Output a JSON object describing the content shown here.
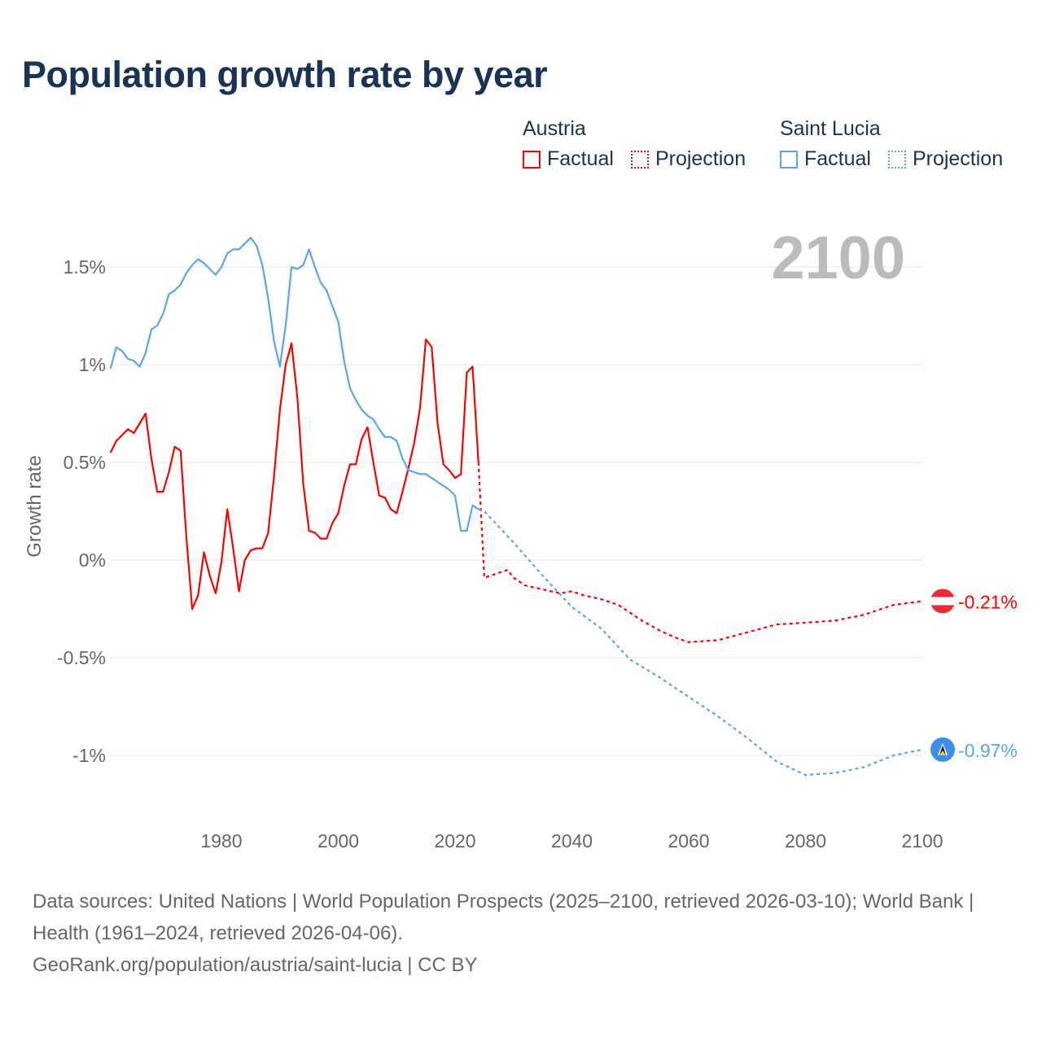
{
  "title": "Population growth rate by year",
  "legend": {
    "groups": [
      {
        "name": "Austria",
        "color": "#ff0000",
        "factual": "Factual",
        "projection": "Projection"
      },
      {
        "name": "Saint Lucia",
        "color": "#5aa5f0",
        "factual": "Factual",
        "projection": "Projection"
      }
    ]
  },
  "year_label": "2100",
  "source": {
    "line1": "Data sources: United Nations | World Population Prospects (2025–2100, retrieved 2026-03-10); World Bank | Health (1961–2024, retrieved 2026-04-06).",
    "line2": "GeoRank.org/population/austria/saint-lucia | CC BY"
  },
  "chart_data": {
    "type": "line",
    "title": "Population growth rate by year",
    "xlabel": "",
    "ylabel": "Growth rate",
    "xlim": [
      1961,
      2100
    ],
    "ylim": [
      -1.2,
      1.8
    ],
    "x_ticks": [
      1980,
      2000,
      2020,
      2040,
      2060,
      2080,
      2100
    ],
    "x_tick_labels": [
      "1980",
      "2000",
      "2020",
      "2040",
      "2060",
      "2080",
      "2100"
    ],
    "y_ticks": [
      1.5,
      1,
      0.5,
      0,
      -0.5,
      -1
    ],
    "y_tick_labels": [
      "1.5%",
      "1%",
      "0.5%",
      "0%",
      "-0.5%",
      "-1%"
    ],
    "grid": true,
    "legend_position": "top-right",
    "series": [
      {
        "name": "Austria",
        "kind": "Factual",
        "color": "#ff0000",
        "x": [
          1961,
          1962,
          1963,
          1964,
          1965,
          1966,
          1967,
          1968,
          1969,
          1970,
          1971,
          1972,
          1973,
          1974,
          1975,
          1976,
          1977,
          1978,
          1979,
          1980,
          1981,
          1982,
          1983,
          1984,
          1985,
          1986,
          1987,
          1988,
          1989,
          1990,
          1991,
          1992,
          1993,
          1994,
          1995,
          1996,
          1997,
          1998,
          1999,
          2000,
          2001,
          2002,
          2003,
          2004,
          2005,
          2006,
          2007,
          2008,
          2009,
          2010,
          2011,
          2012,
          2013,
          2014,
          2015,
          2016,
          2017,
          2018,
          2019,
          2020,
          2021,
          2022,
          2023,
          2024
        ],
        "values": [
          0.55,
          0.61,
          0.64,
          0.67,
          0.65,
          0.7,
          0.75,
          0.52,
          0.35,
          0.35,
          0.45,
          0.58,
          0.56,
          0.11,
          -0.25,
          -0.18,
          0.04,
          -0.08,
          -0.17,
          -0.01,
          0.26,
          0.06,
          -0.16,
          0.0,
          0.05,
          0.06,
          0.06,
          0.14,
          0.43,
          0.77,
          1.0,
          1.11,
          0.83,
          0.39,
          0.15,
          0.14,
          0.11,
          0.11,
          0.19,
          0.24,
          0.38,
          0.49,
          0.49,
          0.62,
          0.68,
          0.5,
          0.33,
          0.32,
          0.26,
          0.24,
          0.35,
          0.47,
          0.6,
          0.78,
          1.13,
          1.09,
          0.7,
          0.49,
          0.46,
          0.42,
          0.44,
          0.96,
          0.99,
          0.5
        ]
      },
      {
        "name": "Austria",
        "kind": "Projection",
        "color": "#ff0000",
        "x": [
          2024,
          2025,
          2027,
          2029,
          2030,
          2032,
          2035,
          2038,
          2040,
          2042,
          2045,
          2048,
          2050,
          2052,
          2055,
          2058,
          2060,
          2065,
          2070,
          2075,
          2080,
          2085,
          2090,
          2095,
          2100
        ],
        "values": [
          0.5,
          -0.09,
          -0.07,
          -0.05,
          -0.09,
          -0.13,
          -0.15,
          -0.17,
          -0.16,
          -0.18,
          -0.2,
          -0.23,
          -0.27,
          -0.31,
          -0.36,
          -0.4,
          -0.42,
          -0.41,
          -0.37,
          -0.33,
          -0.32,
          -0.31,
          -0.28,
          -0.23,
          -0.21
        ]
      },
      {
        "name": "Saint Lucia",
        "kind": "Factual",
        "color": "#5aa5f0",
        "x": [
          1961,
          1962,
          1963,
          1964,
          1965,
          1966,
          1967,
          1968,
          1969,
          1970,
          1971,
          1972,
          1973,
          1974,
          1975,
          1976,
          1977,
          1978,
          1979,
          1980,
          1981,
          1982,
          1983,
          1984,
          1985,
          1986,
          1987,
          1988,
          1989,
          1990,
          1991,
          1992,
          1993,
          1994,
          1995,
          1996,
          1997,
          1998,
          1999,
          2000,
          2001,
          2002,
          2003,
          2004,
          2005,
          2006,
          2007,
          2008,
          2009,
          2010,
          2011,
          2012,
          2013,
          2014,
          2015,
          2016,
          2017,
          2018,
          2019,
          2020,
          2021,
          2022,
          2023,
          2024
        ],
        "values": [
          0.98,
          1.09,
          1.07,
          1.03,
          1.02,
          0.99,
          1.06,
          1.18,
          1.2,
          1.26,
          1.36,
          1.38,
          1.41,
          1.47,
          1.51,
          1.54,
          1.52,
          1.49,
          1.46,
          1.5,
          1.57,
          1.59,
          1.59,
          1.62,
          1.65,
          1.61,
          1.51,
          1.34,
          1.12,
          0.99,
          1.2,
          1.5,
          1.49,
          1.51,
          1.59,
          1.5,
          1.42,
          1.38,
          1.3,
          1.22,
          1.02,
          0.88,
          0.82,
          0.77,
          0.74,
          0.72,
          0.67,
          0.63,
          0.63,
          0.61,
          0.52,
          0.46,
          0.45,
          0.44,
          0.44,
          0.42,
          0.4,
          0.38,
          0.36,
          0.33,
          0.15,
          0.15,
          0.28,
          0.26
        ]
      },
      {
        "name": "Saint Lucia",
        "kind": "Projection",
        "color": "#5aa5f0",
        "x": [
          2024,
          2025,
          2030,
          2035,
          2040,
          2045,
          2050,
          2055,
          2060,
          2065,
          2070,
          2075,
          2080,
          2085,
          2090,
          2095,
          2100
        ],
        "values": [
          0.26,
          0.25,
          0.09,
          -0.08,
          -0.24,
          -0.35,
          -0.51,
          -0.6,
          -0.7,
          -0.8,
          -0.91,
          -1.03,
          -1.1,
          -1.09,
          -1.06,
          -1.0,
          -0.97
        ]
      }
    ],
    "end_labels": [
      {
        "name": "Austria",
        "text": "-0.21%",
        "color": "#ff0000"
      },
      {
        "name": "Saint Lucia",
        "text": "-0.97%",
        "color": "#5aa5f0"
      }
    ]
  }
}
